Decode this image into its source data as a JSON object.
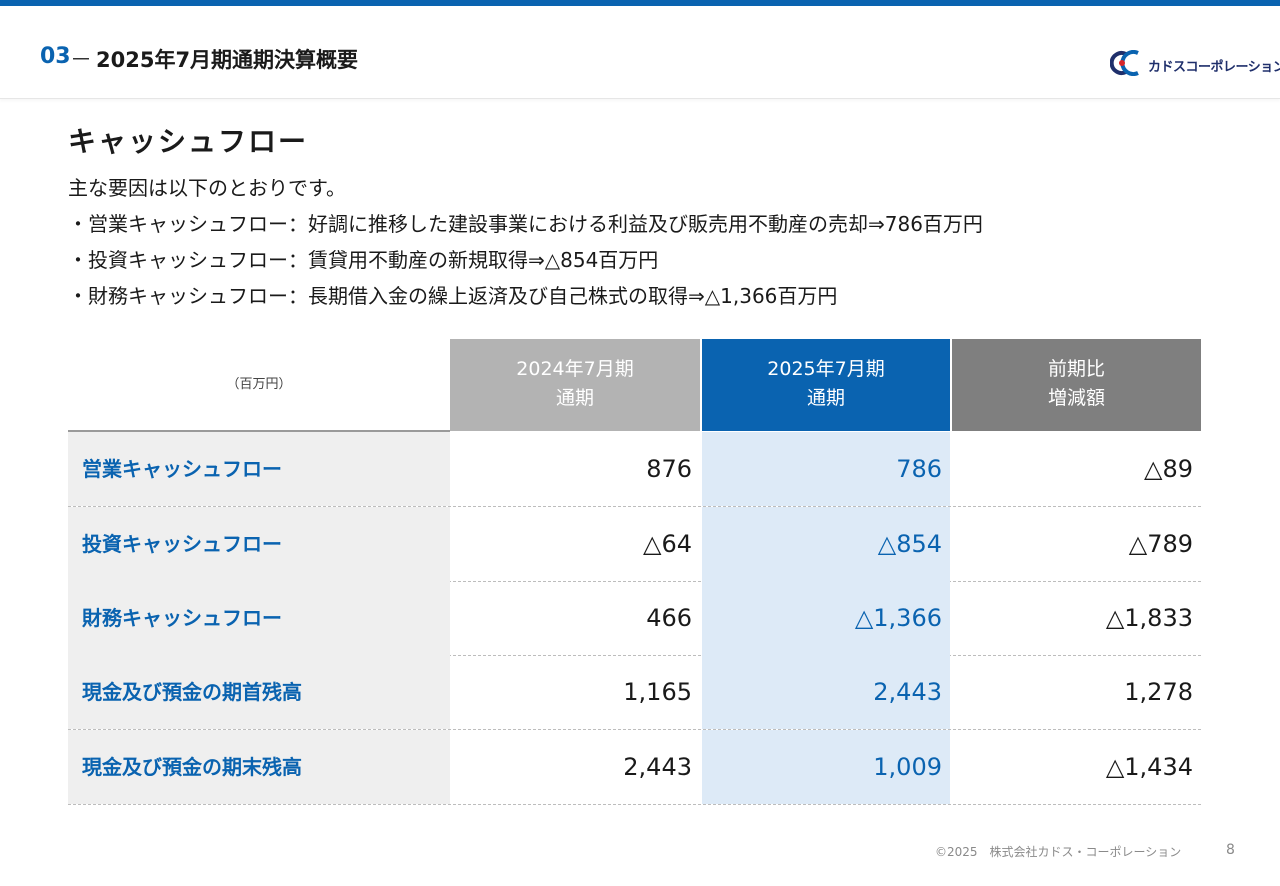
{
  "header": {
    "section_number": "03",
    "section_dash": "－",
    "section_title": "2025年7月期通期決算概要",
    "logo_text": "カドスコーポレーション"
  },
  "page_title": "キャッシュフロー",
  "lead_lines": [
    "主な要因は以下のとおりです。",
    "・営業キャッシュフロー：好調に推移した建設事業における利益及び販売用不動産の売却⇒786百万円",
    "・投資キャッシュフロー：賃貸用不動産の新規取得⇒△854百万円",
    "・財務キャッシュフロー：長期借入金の繰上返済及び自己株式の取得⇒△1,366百万円"
  ],
  "table": {
    "unit": "（百万円）",
    "headers": [
      {
        "line1": "2024年7月期",
        "line2": "通期"
      },
      {
        "line1": "2025年7月期",
        "line2": "通期"
      },
      {
        "line1": "前期比",
        "line2": "増減額"
      }
    ],
    "rows": [
      {
        "label": "営業キャッシュフロー",
        "v2024": "876",
        "v2025": "786",
        "diff": "△89"
      },
      {
        "label": "投資キャッシュフロー",
        "v2024": "△64",
        "v2025": "△854",
        "diff": "△789"
      },
      {
        "label": "財務キャッシュフロー",
        "v2024": "466",
        "v2025": "△1,366",
        "diff": "△1,833"
      },
      {
        "label": "現金及び預金の期首残高",
        "v2024": "1,165",
        "v2025": "2,443",
        "diff": "1,278"
      },
      {
        "label": "現金及び預金の期末残高",
        "v2024": "2,443",
        "v2025": "1,009",
        "diff": "△1,434"
      }
    ]
  },
  "footer": {
    "copyright": "©2025　株式会社カドス・コーポレーション",
    "page_number": "8"
  },
  "colors": {
    "brand_blue": "#0a63b0",
    "header_2024": "#b3b3b3",
    "header_2025": "#0a63b0",
    "header_diff": "#7f7f7f",
    "label_bg": "#efefef",
    "highlight_col": "#ddeaf7"
  }
}
